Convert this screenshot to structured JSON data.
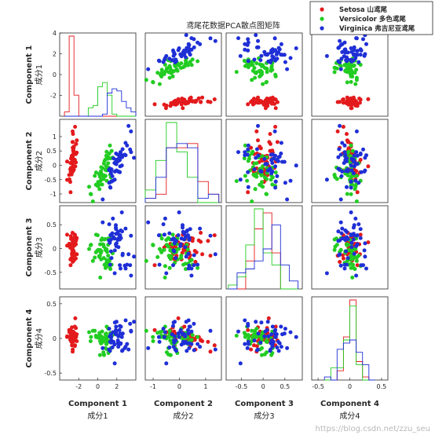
{
  "chart_data": {
    "type": "scatter",
    "title": "鸢尾花数据PCA散点图矩阵",
    "variables": [
      {
        "label": "Component 1",
        "sublabel": "成分1",
        "lim": [
          -4,
          4
        ],
        "ticks": [
          -2,
          0,
          2
        ]
      },
      {
        "label": "Component 2",
        "sublabel": "成分2",
        "lim": [
          -1.3,
          1.6
        ],
        "ticks": [
          -1,
          0,
          1
        ]
      },
      {
        "label": "Component 3",
        "sublabel": "成分3",
        "lim": [
          -0.85,
          0.9
        ],
        "ticks": [
          -0.5,
          0,
          0.5
        ]
      },
      {
        "label": "Component 4",
        "sublabel": "成分4",
        "lim": [
          -0.6,
          0.6
        ],
        "ticks": [
          -0.5,
          0,
          0.5
        ]
      }
    ],
    "row_ticks": [
      {
        "ticks": [
          -2,
          0,
          2,
          4
        ],
        "labels": [
          "-2",
          "0",
          "2",
          "4"
        ]
      },
      {
        "ticks": [
          -1,
          -0.5,
          0,
          0.5,
          1
        ],
        "labels": [
          "-1",
          "-0.5",
          "0",
          "0.5",
          "1"
        ]
      },
      {
        "ticks": [
          -0.5,
          0,
          0.5
        ],
        "labels": [
          "-0.5",
          "0",
          "0.5"
        ]
      },
      {
        "ticks": [
          -0.5,
          0,
          0.5
        ],
        "labels": [
          "-0.5",
          "0",
          "0.5"
        ]
      }
    ],
    "col_ticks": [
      {
        "ticks": [
          -2,
          0,
          2
        ],
        "labels": [
          "-2",
          "0",
          "2"
        ]
      },
      {
        "ticks": [
          -1,
          0,
          1
        ],
        "labels": [
          "-1",
          "0",
          "1"
        ]
      },
      {
        "ticks": [
          -0.5,
          0,
          0.5
        ],
        "labels": [
          "-0.5",
          "0",
          "0.5"
        ]
      },
      {
        "ticks": [
          -0.5,
          0,
          0.5
        ],
        "labels": [
          "-0.5",
          "0",
          "0.5"
        ]
      }
    ],
    "series": [
      {
        "name": "Setosa 山鸢尾",
        "color": "#e31a1c",
        "points": [
          [
            -2.68,
            0.32,
            -0.03,
            -0.0
          ],
          [
            -2.71,
            -0.18,
            -0.21,
            -0.1
          ],
          [
            -2.89,
            -0.14,
            0.02,
            -0.02
          ],
          [
            -2.75,
            -0.32,
            0.03,
            0.08
          ],
          [
            -2.73,
            0.33,
            0.09,
            0.06
          ],
          [
            -2.28,
            0.74,
            0.17,
            0.02
          ],
          [
            -2.82,
            -0.09,
            0.26,
            0.05
          ],
          [
            -2.63,
            0.16,
            -0.02,
            0.05
          ],
          [
            -2.89,
            -0.58,
            0.02,
            0.03
          ],
          [
            -2.67,
            -0.11,
            -0.2,
            0.06
          ],
          [
            -2.51,
            0.65,
            -0.08,
            0.02
          ],
          [
            -2.61,
            0.01,
            0.1,
            0.08
          ],
          [
            -2.79,
            -0.24,
            -0.21,
            0.02
          ],
          [
            -3.22,
            -0.51,
            0.06,
            0.03
          ],
          [
            -2.64,
            1.18,
            -0.15,
            -0.19
          ],
          [
            -2.38,
            1.34,
            0.28,
            -0.1
          ],
          [
            -2.62,
            0.81,
            0.14,
            -0.02
          ],
          [
            -2.65,
            0.31,
            0.03,
            -0.01
          ],
          [
            -2.2,
            0.87,
            -0.12,
            -0.04
          ],
          [
            -2.59,
            0.51,
            0.21,
            0.0
          ],
          [
            -2.31,
            0.39,
            -0.21,
            -0.03
          ],
          [
            -2.54,
            0.43,
            0.21,
            0.03
          ],
          [
            -3.22,
            0.13,
            0.29,
            0.02
          ],
          [
            -2.3,
            0.1,
            0.09,
            0.15
          ],
          [
            -2.36,
            -0.04,
            0.13,
            0.29
          ],
          [
            -2.51,
            -0.15,
            -0.25,
            0.04
          ],
          [
            -2.47,
            0.14,
            0.06,
            0.08
          ],
          [
            -2.56,
            0.37,
            -0.08,
            -0.01
          ],
          [
            -2.64,
            0.31,
            -0.11,
            -0.05
          ],
          [
            -2.63,
            -0.19,
            0.07,
            0.08
          ],
          [
            -2.59,
            -0.2,
            -0.07,
            0.1
          ],
          [
            -2.41,
            0.41,
            -0.14,
            -0.11
          ],
          [
            -2.65,
            0.81,
            0.33,
            -0.03
          ],
          [
            -2.6,
            1.09,
            0.16,
            -0.05
          ],
          [
            -2.67,
            -0.11,
            -0.15,
            0.03
          ],
          [
            -2.87,
            0.08,
            -0.23,
            0.01
          ],
          [
            -2.63,
            0.61,
            -0.28,
            -0.16
          ],
          [
            -2.8,
            0.23,
            0.2,
            0.06
          ],
          [
            -2.98,
            -0.49,
            0.07,
            0.09
          ],
          [
            -2.59,
            0.23,
            -0.04,
            0.04
          ],
          [
            -2.77,
            0.26,
            0.1,
            -0.05
          ],
          [
            -2.85,
            -0.94,
            -0.35,
            0.12
          ],
          [
            -3.0,
            -0.34,
            0.1,
            0.12
          ],
          [
            -2.41,
            0.19,
            0.29,
            0.17
          ],
          [
            -2.21,
            0.44,
            0.22,
            0.06
          ],
          [
            -2.71,
            -0.25,
            -0.12,
            0.16
          ],
          [
            -2.54,
            0.5,
            0.16,
            -0.03
          ],
          [
            -2.84,
            -0.23,
            0.02,
            0.08
          ],
          [
            -2.54,
            0.59,
            -0.05,
            -0.02
          ],
          [
            -2.7,
            0.11,
            -0.09,
            0.03
          ]
        ]
      },
      {
        "name": "Versicolor 多色鸢尾",
        "color": "#22cc22",
        "points": [
          [
            1.28,
            0.69,
            -0.41,
            0.02
          ],
          [
            0.93,
            0.32,
            -0.02,
            0.01
          ],
          [
            1.46,
            0.5,
            -0.34,
            0.05
          ],
          [
            0.18,
            -0.83,
            -0.18,
            0.08
          ],
          [
            1.09,
            0.07,
            -0.15,
            0.14
          ],
          [
            0.64,
            -0.42,
            0.04,
            -0.23
          ],
          [
            1.1,
            0.28,
            0.08,
            -0.05
          ],
          [
            -0.75,
            -1.0,
            0.07,
            -0.04
          ],
          [
            1.04,
            0.23,
            -0.32,
            0.02
          ],
          [
            -0.01,
            -0.72,
            0.28,
            0.02
          ],
          [
            -0.51,
            -1.26,
            -0.26,
            0.11
          ],
          [
            0.51,
            -0.1,
            0.09,
            -0.05
          ],
          [
            0.26,
            -0.55,
            -0.61,
            0.04
          ],
          [
            0.98,
            -0.12,
            -0.07,
            -0.16
          ],
          [
            -0.17,
            -0.25,
            0.29,
            0.02
          ],
          [
            0.93,
            0.47,
            -0.24,
            -0.02
          ],
          [
            0.66,
            -0.35,
            0.19,
            -0.24
          ],
          [
            0.24,
            -0.33,
            -0.03,
            -0.24
          ],
          [
            0.94,
            -0.54,
            -0.37,
            0.17
          ],
          [
            0.04,
            -0.58,
            -0.03,
            0.01
          ],
          [
            1.12,
            -0.08,
            0.21,
            -0.21
          ],
          [
            0.36,
            -0.07,
            -0.23,
            0.03
          ],
          [
            1.3,
            -0.33,
            -0.22,
            0.05
          ],
          [
            0.92,
            -0.18,
            -0.3,
            -0.08
          ],
          [
            0.71,
            0.15,
            -0.34,
            -0.02
          ],
          [
            0.9,
            0.33,
            -0.32,
            -0.08
          ],
          [
            1.33,
            0.24,
            -0.43,
            0.08
          ],
          [
            1.56,
            0.27,
            -0.1,
            0.05
          ],
          [
            0.81,
            -0.16,
            -0.03,
            -0.14
          ],
          [
            -0.31,
            -0.37,
            -0.19,
            0.11
          ],
          [
            -0.07,
            -0.7,
            -0.05,
            0.02
          ],
          [
            -0.19,
            -0.68,
            -0.08,
            0.04
          ],
          [
            0.14,
            -0.31,
            -0.16,
            0.04
          ],
          [
            1.38,
            -0.42,
            0.22,
            -0.14
          ],
          [
            0.59,
            -0.48,
            0.08,
            -0.2
          ],
          [
            0.81,
            0.2,
            0.2,
            -0.04
          ],
          [
            1.22,
            0.41,
            -0.26,
            -0.04
          ],
          [
            0.82,
            -0.37,
            -0.41,
            0.06
          ],
          [
            0.25,
            -0.27,
            0.09,
            -0.04
          ],
          [
            0.16,
            -0.68,
            -0.05,
            0.03
          ],
          [
            0.46,
            -0.67,
            0.21,
            0.1
          ],
          [
            0.89,
            -0.03,
            -0.01,
            0.07
          ],
          [
            0.23,
            -0.4,
            -0.15,
            0.02
          ],
          [
            -0.71,
            -1.01,
            0.08,
            0.02
          ],
          [
            0.36,
            -0.5,
            0.18,
            0.0
          ],
          [
            0.33,
            -0.21,
            -0.09,
            -0.07
          ],
          [
            0.38,
            -0.29,
            -0.06,
            -0.07
          ],
          [
            0.64,
            0.06,
            -0.2,
            0.01
          ],
          [
            -0.91,
            -0.75,
            -0.01,
            0.09
          ],
          [
            0.3,
            -0.35,
            -0.04,
            -0.03
          ]
        ]
      },
      {
        "name": "Virginica 弗吉尼亚鸢尾",
        "color": "#1f2fd6",
        "points": [
          [
            2.53,
            -0.01,
            0.76,
            0.02
          ],
          [
            1.41,
            -0.57,
            0.29,
            0.02
          ],
          [
            2.62,
            0.34,
            -0.11,
            0.07
          ],
          [
            1.97,
            -0.18,
            0.11,
            0.24
          ],
          [
            2.35,
            -0.04,
            0.28,
            0.07
          ],
          [
            3.4,
            0.55,
            -0.35,
            0.21
          ],
          [
            0.52,
            -1.19,
            0.55,
            -0.14
          ],
          [
            2.93,
            0.35,
            -0.42,
            0.26
          ],
          [
            2.32,
            -0.24,
            -0.35,
            0.18
          ],
          [
            2.92,
            0.78,
            0.42,
            -0.12
          ],
          [
            1.66,
            0.24,
            0.24,
            -0.05
          ],
          [
            1.8,
            -0.22,
            -0.04,
            0.23
          ],
          [
            2.17,
            0.22,
            0.03,
            0.03
          ],
          [
            1.34,
            -0.78,
            0.28,
            0.02
          ],
          [
            1.59,
            -0.54,
            0.63,
            0.09
          ],
          [
            1.9,
            0.12,
            0.49,
            0.07
          ],
          [
            1.95,
            0.04,
            0.05,
            0.1
          ],
          [
            3.49,
            1.18,
            0.27,
            0.11
          ],
          [
            3.8,
            0.26,
            -0.17,
            0.24
          ],
          [
            1.3,
            -0.76,
            -0.34,
            -0.05
          ],
          [
            2.43,
            0.38,
            0.22,
            0.17
          ],
          [
            1.2,
            -0.61,
            0.51,
            0.14
          ],
          [
            3.5,
            0.46,
            -0.57,
            0.1
          ],
          [
            1.39,
            -0.2,
            -0.06,
            -0.06
          ],
          [
            2.28,
            0.33,
            0.28,
            0.12
          ],
          [
            2.61,
            0.56,
            -0.14,
            -0.17
          ],
          [
            1.26,
            -0.18,
            0.12,
            0.03
          ],
          [
            1.29,
            -0.12,
            0.16,
            -0.18
          ],
          [
            2.12,
            -0.21,
            0.2,
            -0.03
          ],
          [
            2.39,
            0.46,
            -0.42,
            -0.08
          ],
          [
            2.84,
            0.37,
            -0.36,
            -0.14
          ],
          [
            3.23,
            1.37,
            -0.12,
            -0.16
          ],
          [
            2.16,
            -0.22,
            0.21,
            -0.12
          ],
          [
            1.44,
            -0.14,
            -0.2,
            -0.03
          ],
          [
            1.78,
            -0.5,
            -0.52,
            -0.36
          ],
          [
            3.08,
            0.69,
            -0.34,
            -0.08
          ],
          [
            2.14,
            0.14,
            0.35,
            -0.05
          ],
          [
            1.9,
            0.05,
            0.09,
            0.12
          ],
          [
            1.17,
            -0.16,
            0.17,
            -0.16
          ],
          [
            2.11,
            0.37,
            0.18,
            -0.07
          ],
          [
            2.31,
            0.18,
            0.19,
            -0.07
          ],
          [
            1.92,
            0.41,
            0.41,
            0.17
          ],
          [
            1.42,
            -0.57,
            0.29,
            0.02
          ],
          [
            2.56,
            0.28,
            0.36,
            -0.18
          ],
          [
            2.42,
            0.3,
            0.38,
            -0.07
          ],
          [
            1.94,
            0.19,
            0.31,
            0.06
          ],
          [
            1.53,
            -0.38,
            0.32,
            -0.13
          ],
          [
            1.76,
            0.08,
            0.21,
            -0.09
          ],
          [
            1.9,
            0.12,
            0.44,
            0.06
          ],
          [
            1.39,
            -0.28,
            0.19,
            0.06
          ]
        ]
      }
    ],
    "histograms": [
      {
        "bins": [
          -3.5,
          -3.0,
          -2.5,
          -2.0,
          -1.5,
          -1.0,
          -0.5,
          0,
          0.5,
          1.0,
          1.5,
          2.0,
          2.5,
          3.0,
          3.5,
          4.0
        ]
      },
      {
        "bins": [
          -1.3,
          -0.9,
          -0.5,
          -0.1,
          0.3,
          0.7,
          1.1,
          1.5
        ]
      },
      {
        "bins": [
          -0.8,
          -0.6,
          -0.4,
          -0.2,
          0,
          0.2,
          0.4,
          0.6,
          0.8
        ]
      },
      {
        "bins": [
          -0.4,
          -0.3,
          -0.2,
          -0.1,
          0,
          0.1,
          0.2,
          0.3,
          0.4
        ]
      }
    ],
    "legend_position": "top-right",
    "grid": false
  },
  "watermark": "https://blog.csdn.net/zzu_seu"
}
